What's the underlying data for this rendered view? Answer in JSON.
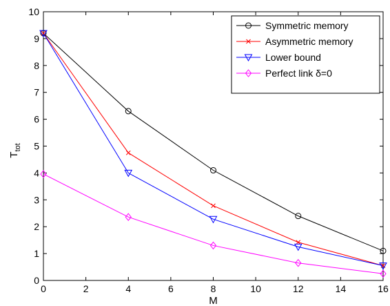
{
  "chart_data": {
    "type": "line",
    "title": "",
    "xlabel": "M",
    "ylabel_main": "T",
    "ylabel_sub": "tot",
    "xlim": [
      0,
      16
    ],
    "ylim": [
      0,
      10
    ],
    "xticks": [
      "0",
      "2",
      "4",
      "6",
      "8",
      "10",
      "12",
      "14",
      "16"
    ],
    "yticks": [
      "0",
      "1",
      "2",
      "3",
      "4",
      "5",
      "6",
      "7",
      "8",
      "9",
      "10"
    ],
    "grid": false,
    "legend_position": "top-right",
    "x": [
      0,
      4,
      8,
      12,
      16
    ],
    "series": [
      {
        "name": "Symmetric memory",
        "color": "#000000",
        "marker": "circle",
        "values": [
          9.2,
          6.3,
          4.1,
          2.4,
          1.1
        ]
      },
      {
        "name": "Asymmetric memory",
        "color": "#ff0000",
        "marker": "x",
        "values": [
          9.2,
          4.75,
          2.78,
          1.42,
          0.55
        ]
      },
      {
        "name": "Lower bound",
        "color": "#0000ff",
        "marker": "triangle-down",
        "values": [
          9.2,
          4.0,
          2.28,
          1.25,
          0.55
        ]
      },
      {
        "name": "Perfect link δ=0",
        "color": "#ff00ff",
        "marker": "diamond",
        "values": [
          3.96,
          2.36,
          1.3,
          0.65,
          0.25
        ]
      }
    ]
  }
}
